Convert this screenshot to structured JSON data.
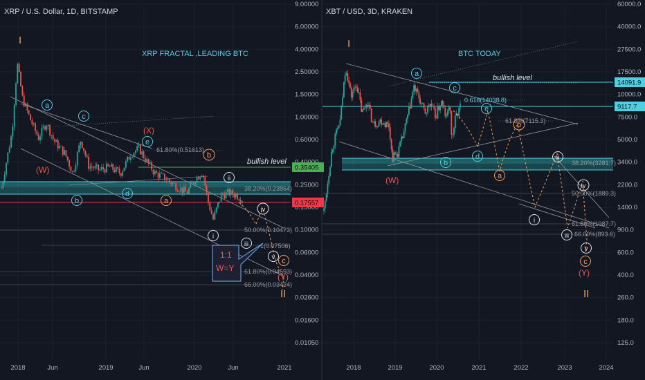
{
  "colors": {
    "bg": "#131722",
    "grid": "#1e222d",
    "axis_text": "#b2b5be",
    "candle_up": "#26a69a",
    "candle_down": "#ef5350",
    "zone": "#2bb3b3",
    "cyan": "#4dd0e1",
    "orange": "#f39c57",
    "red_label": "#ef5350",
    "white": "#e0e3eb",
    "trend": "#9598a1"
  },
  "chart_data": [
    {
      "type": "candlestick",
      "title": "XRP / U.S. Dollar, 1D, BITSTAMP",
      "banner": "XRP FRACTAL ,LEADING BTC",
      "y_scale": "log",
      "y_ticks": [
        "9.00000",
        "6.00000",
        "4.00000",
        "2.50000",
        "1.50000",
        "1.00000",
        "0.60000",
        "0.40000",
        "0.25000",
        "0.15000",
        "0.10000",
        "0.06000",
        "0.04000",
        "0.02600",
        "0.01600",
        "0.01050"
      ],
      "x_ticks": [
        "2018",
        "Jun",
        "2019",
        "Jun",
        "2020",
        "Jun",
        "2021"
      ],
      "price_badges": [
        {
          "value": "0.35405",
          "color": "#4caf50"
        },
        {
          "value": "0.17557",
          "color": "#f23645"
        }
      ],
      "levels": [
        {
          "label": "bullish level"
        },
        {
          "label": "38.20%(0.23864)"
        },
        {
          "label": "61.80%(0.51613)"
        },
        {
          "label": "50.00%(0.10473)"
        },
        {
          "label": "1(0.07506)"
        },
        {
          "label": "61.80%(0.04593)"
        },
        {
          "label": "66.00%(0.03424)"
        }
      ],
      "wave_labels": [
        "I",
        "II",
        "(W)",
        "(X)",
        "(Y)",
        "a",
        "b",
        "c",
        "d",
        "e",
        "a",
        "b",
        "c",
        "i",
        "ii",
        "iii",
        "iv",
        "v"
      ],
      "callout": {
        "line1": "1:1",
        "line2": "W=Y"
      },
      "series": [
        {
          "t": 0.0,
          "v": 0.22
        },
        {
          "t": 0.04,
          "v": 0.7
        },
        {
          "t": 0.06,
          "v": 2.9
        },
        {
          "t": 0.08,
          "v": 1.4
        },
        {
          "t": 0.11,
          "v": 0.9
        },
        {
          "t": 0.14,
          "v": 0.62
        },
        {
          "t": 0.17,
          "v": 0.85
        },
        {
          "t": 0.2,
          "v": 0.58
        },
        {
          "t": 0.24,
          "v": 0.45
        },
        {
          "t": 0.27,
          "v": 0.3
        },
        {
          "t": 0.3,
          "v": 0.6
        },
        {
          "t": 0.33,
          "v": 0.35
        },
        {
          "t": 0.37,
          "v": 0.32
        },
        {
          "t": 0.41,
          "v": 0.34
        },
        {
          "t": 0.45,
          "v": 0.3
        },
        {
          "t": 0.49,
          "v": 0.45
        },
        {
          "t": 0.52,
          "v": 0.5
        },
        {
          "t": 0.55,
          "v": 0.38
        },
        {
          "t": 0.58,
          "v": 0.3
        },
        {
          "t": 0.62,
          "v": 0.27
        },
        {
          "t": 0.66,
          "v": 0.23
        },
        {
          "t": 0.7,
          "v": 0.2
        },
        {
          "t": 0.73,
          "v": 0.26
        },
        {
          "t": 0.76,
          "v": 0.31
        },
        {
          "t": 0.78,
          "v": 0.17
        },
        {
          "t": 0.8,
          "v": 0.115
        },
        {
          "t": 0.83,
          "v": 0.19
        },
        {
          "t": 0.86,
          "v": 0.2
        },
        {
          "t": 0.89,
          "v": 0.19
        },
        {
          "t": 0.91,
          "v": 0.175
        }
      ]
    },
    {
      "type": "candlestick",
      "title": "XBT / USD, 3D, KRAKEN",
      "banner": "BTC TODAY",
      "y_scale": "log",
      "y_ticks": [
        "60000.0",
        "40000.0",
        "27500.0",
        "17500.0",
        "10000.0",
        "7500.0",
        "5000.0",
        "3400.0",
        "2200.0",
        "1400.0",
        "900.0",
        "600.0",
        "400.0",
        "260.0",
        "180.0",
        "125.0"
      ],
      "x_ticks": [
        "2018",
        "2019",
        "2020",
        "2021",
        "2022",
        "2023",
        "2024"
      ],
      "price_badges": [
        {
          "value": "14091.9",
          "color": "#4dd0e1"
        },
        {
          "value": "9117.7",
          "color": "#4dd0e1"
        }
      ],
      "levels": [
        {
          "label": "bullish level"
        },
        {
          "label": "0.618(14038.8)"
        },
        {
          "label": "61.8%(7115.3)"
        },
        {
          "label": "38.20%(3281.7)"
        },
        {
          "label": "50.00%(1889.3)"
        },
        {
          "label": "61.80%(1087.7)"
        },
        {
          "label": "66.00%(893.6)"
        }
      ],
      "wave_labels": [
        "I",
        "II",
        "(W)",
        "(Y)",
        "a",
        "b",
        "c",
        "d",
        "e",
        "a",
        "b",
        "c",
        "i",
        "ii",
        "iii",
        "iv",
        "v"
      ],
      "series": [
        {
          "t": 0.0,
          "v": 1300
        },
        {
          "t": 0.03,
          "v": 4200
        },
        {
          "t": 0.06,
          "v": 7000
        },
        {
          "t": 0.08,
          "v": 19500
        },
        {
          "t": 0.1,
          "v": 11000
        },
        {
          "t": 0.12,
          "v": 14000
        },
        {
          "t": 0.14,
          "v": 8000
        },
        {
          "t": 0.16,
          "v": 10000
        },
        {
          "t": 0.18,
          "v": 6500
        },
        {
          "t": 0.21,
          "v": 7000
        },
        {
          "t": 0.24,
          "v": 6300
        },
        {
          "t": 0.25,
          "v": 3500
        },
        {
          "t": 0.27,
          "v": 3800
        },
        {
          "t": 0.29,
          "v": 5200
        },
        {
          "t": 0.31,
          "v": 8000
        },
        {
          "t": 0.33,
          "v": 13000
        },
        {
          "t": 0.35,
          "v": 10500
        },
        {
          "t": 0.37,
          "v": 8000
        },
        {
          "t": 0.39,
          "v": 9500
        },
        {
          "t": 0.41,
          "v": 7500
        },
        {
          "t": 0.43,
          "v": 10000
        },
        {
          "t": 0.45,
          "v": 7200
        },
        {
          "t": 0.46,
          "v": 9800
        },
        {
          "t": 0.47,
          "v": 4800
        },
        {
          "t": 0.48,
          "v": 7000
        },
        {
          "t": 0.5,
          "v": 9100
        }
      ]
    }
  ]
}
